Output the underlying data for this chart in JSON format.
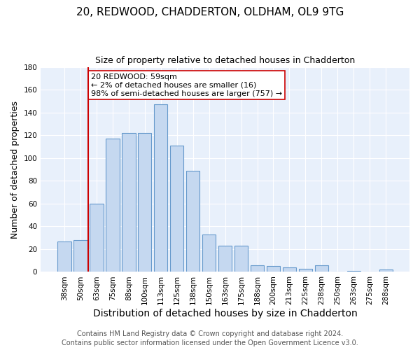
{
  "title": "20, REDWOOD, CHADDERTON, OLDHAM, OL9 9TG",
  "subtitle": "Size of property relative to detached houses in Chadderton",
  "xlabel": "Distribution of detached houses by size in Chadderton",
  "ylabel": "Number of detached properties",
  "categories": [
    "38sqm",
    "50sqm",
    "63sqm",
    "75sqm",
    "88sqm",
    "100sqm",
    "113sqm",
    "125sqm",
    "138sqm",
    "150sqm",
    "163sqm",
    "175sqm",
    "188sqm",
    "200sqm",
    "213sqm",
    "225sqm",
    "238sqm",
    "250sqm",
    "263sqm",
    "275sqm",
    "288sqm"
  ],
  "values": [
    27,
    28,
    60,
    117,
    122,
    122,
    147,
    111,
    89,
    33,
    23,
    23,
    6,
    5,
    4,
    3,
    6,
    0,
    1,
    0,
    2
  ],
  "bar_color": "#c5d8f0",
  "bar_edge_color": "#6699cc",
  "vline_color": "#cc0000",
  "vline_x_index": 1.5,
  "annotation_text": "20 REDWOOD: 59sqm\n← 2% of detached houses are smaller (16)\n98% of semi-detached houses are larger (757) →",
  "annotation_box_color": "white",
  "annotation_box_edge": "#cc0000",
  "ylim": [
    0,
    180
  ],
  "background_color": "#e8f0fb",
  "footer1": "Contains HM Land Registry data © Crown copyright and database right 2024.",
  "footer2": "Contains public sector information licensed under the Open Government Licence v3.0.",
  "title_fontsize": 11,
  "subtitle_fontsize": 9,
  "xlabel_fontsize": 10,
  "ylabel_fontsize": 9,
  "tick_fontsize": 7.5,
  "footer_fontsize": 7,
  "annotation_fontsize": 8
}
